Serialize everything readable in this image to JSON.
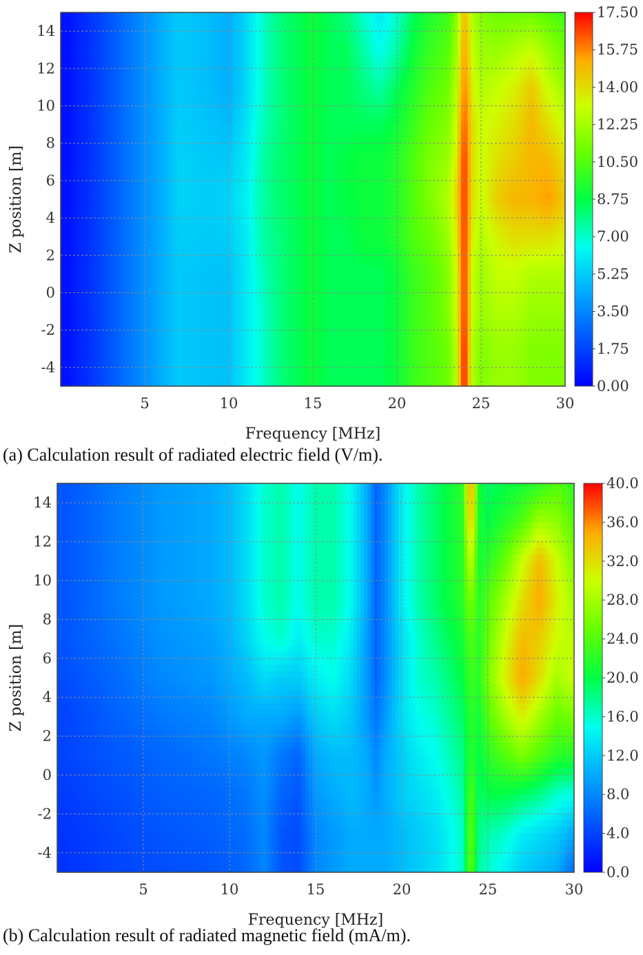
{
  "chart_data": [
    {
      "id": "a",
      "type": "heatmap",
      "caption": "(a) Calculation result of radiated electric field (V/m).",
      "xlabel": "Frequency [MHz]",
      "ylabel": "Z position [m]",
      "xlim": [
        0,
        30
      ],
      "ylim": [
        -5,
        15
      ],
      "xticks": [
        5,
        10,
        15,
        20,
        25,
        30
      ],
      "xtick_labels": [
        "5",
        "10",
        "15",
        "20",
        "25",
        "30"
      ],
      "yticks": [
        14,
        12,
        10,
        8,
        6,
        4,
        2,
        0,
        -2,
        -4
      ],
      "ytick_labels": [
        "14",
        "12",
        "10",
        "8",
        "6",
        "4",
        "2",
        "0",
        "-2",
        "-4"
      ],
      "colorbar_range": [
        0,
        17.5
      ],
      "colorbar_ticks": [
        17.5,
        15.75,
        14.0,
        12.25,
        10.5,
        8.75,
        7.0,
        5.25,
        3.5,
        1.75,
        0.0
      ],
      "colorbar_labels": [
        "17.50",
        "15.75",
        "14.00",
        "12.25",
        "10.50",
        "8.75",
        "7.00",
        "5.25",
        "3.50",
        "1.75",
        "0.00"
      ],
      "grid": true,
      "x": [
        0.5,
        2,
        4,
        6,
        7,
        9,
        10,
        11,
        12,
        13,
        14,
        15,
        16,
        17,
        18,
        19,
        20,
        21,
        22,
        23,
        23.5,
        24,
        24.5,
        25,
        26,
        27,
        28,
        29,
        30
      ],
      "y": [
        15,
        13,
        11,
        9,
        7,
        5,
        3,
        1,
        -1,
        -3,
        -5
      ],
      "z": [
        [
          0.5,
          1.5,
          3,
          4.5,
          5.2,
          4.8,
          4.5,
          5.5,
          7,
          8,
          8.5,
          9,
          8.5,
          8,
          7,
          6,
          7,
          8.5,
          9.5,
          10,
          11.5,
          15,
          12.5,
          11.5,
          11,
          11,
          11,
          10.5,
          10
        ],
        [
          0.5,
          1.5,
          3,
          4.5,
          5.2,
          4.8,
          4.5,
          5.5,
          7,
          8,
          8.5,
          9,
          8.5,
          8.5,
          7.5,
          6.5,
          7.5,
          9,
          10,
          10.5,
          12,
          15.5,
          13,
          12,
          12,
          12.5,
          13,
          12,
          11
        ],
        [
          0.5,
          1.5,
          3,
          4.5,
          5.2,
          4.8,
          4.5,
          5.5,
          7,
          8,
          8.5,
          9,
          8.5,
          8.5,
          8,
          7.5,
          8.5,
          9.5,
          10.5,
          11,
          12.5,
          16,
          13.5,
          12.5,
          13,
          13.5,
          14.5,
          13,
          12
        ],
        [
          0.5,
          1.5,
          3,
          4.5,
          5.3,
          5,
          4.8,
          5.8,
          7.2,
          8,
          8.5,
          9,
          8.5,
          8.5,
          8.5,
          8.5,
          9,
          10,
          11,
          11.5,
          13,
          16.5,
          14,
          13,
          13.5,
          14,
          15,
          14,
          13
        ],
        [
          0.5,
          1.5,
          3,
          4.5,
          5.4,
          5.2,
          5.2,
          6,
          7.5,
          8.2,
          8.5,
          9,
          8.5,
          8.8,
          9,
          9,
          9.5,
          10.5,
          11.5,
          12,
          13.5,
          17,
          14,
          13,
          14,
          14.5,
          15,
          15,
          14
        ],
        [
          0.5,
          1.5,
          3,
          4.5,
          5.4,
          5.3,
          5.5,
          6.2,
          7.5,
          8.2,
          8.5,
          9,
          8.5,
          8.8,
          9,
          9,
          9.5,
          10.5,
          11.5,
          12.5,
          14,
          17,
          14,
          13,
          14.5,
          15,
          15,
          15.5,
          14.5
        ],
        [
          0.5,
          1.5,
          3,
          4.5,
          5.3,
          5.2,
          5.3,
          6,
          7.5,
          8,
          8.5,
          9,
          8.5,
          8.5,
          9,
          9,
          9.5,
          10.5,
          11,
          12,
          13.5,
          17,
          13.5,
          12.5,
          13.5,
          14,
          14,
          14,
          13.5
        ],
        [
          0.5,
          1.5,
          3,
          4.5,
          5.2,
          5,
          5,
          6,
          7.2,
          8,
          8.5,
          9,
          8.5,
          8.5,
          8.5,
          8.5,
          9,
          10,
          10.5,
          11.5,
          13,
          17,
          13,
          12,
          13,
          13,
          12.5,
          12.5,
          12.5
        ],
        [
          0.5,
          1.5,
          3,
          4.5,
          5.2,
          5,
          5,
          6,
          7,
          8,
          8.5,
          9,
          8.5,
          8.5,
          8.5,
          8.5,
          9,
          10,
          10.5,
          11.5,
          13,
          17,
          13,
          12,
          12.5,
          12.5,
          12,
          12,
          12
        ],
        [
          0.5,
          1.5,
          3,
          4.5,
          5.2,
          5,
          5,
          6,
          7,
          8,
          8.5,
          9,
          8.5,
          8.5,
          8.5,
          8.5,
          9,
          10,
          10.5,
          11,
          12.5,
          17.5,
          12.5,
          11.5,
          12,
          12,
          11.5,
          11.5,
          11.5
        ],
        [
          0.5,
          1.5,
          3,
          4.5,
          5.2,
          5,
          5,
          6,
          7,
          8,
          8.5,
          9,
          8.5,
          8.5,
          8.5,
          8.5,
          9,
          10,
          10.5,
          11,
          12.5,
          17.5,
          12.5,
          11.5,
          12,
          12,
          11.5,
          11.5,
          11.5
        ]
      ]
    },
    {
      "id": "b",
      "type": "heatmap",
      "caption": "(b) Calculation result of radiated magnetic field (mA/m).",
      "xlabel": "Frequency [MHz]",
      "ylabel": "Z position [m]",
      "xlim": [
        0,
        30
      ],
      "ylim": [
        -5,
        15
      ],
      "xticks": [
        5,
        10,
        15,
        20,
        25,
        30
      ],
      "xtick_labels": [
        "5",
        "10",
        "15",
        "20",
        "25",
        "30"
      ],
      "yticks": [
        14,
        12,
        10,
        8,
        6,
        4,
        2,
        0,
        -2,
        -4
      ],
      "ytick_labels": [
        "14",
        "12",
        "10",
        "8",
        "6",
        "4",
        "2",
        "0",
        "-2",
        "-4"
      ],
      "colorbar_range": [
        0,
        40
      ],
      "colorbar_ticks": [
        40,
        36,
        32,
        28,
        24,
        20,
        16,
        12,
        8,
        4,
        0
      ],
      "colorbar_labels": [
        "40.0",
        "36.0",
        "32.0",
        "28.0",
        "24.0",
        "20.0",
        "16.0",
        "12.0",
        "8.0",
        "4.0",
        "0.0"
      ],
      "grid": true,
      "x": [
        0.5,
        3,
        6,
        9,
        10,
        11,
        12,
        13,
        14,
        15,
        16,
        17,
        18,
        18.5,
        19,
        20,
        21,
        22,
        23,
        23.5,
        24,
        24.5,
        25,
        26,
        27,
        28,
        29,
        30
      ],
      "y": [
        15,
        13,
        11,
        9,
        7,
        5,
        3,
        1,
        -1,
        -3,
        -5
      ],
      "z": [
        [
          5,
          7,
          9,
          10,
          11,
          13,
          16,
          17,
          15,
          17,
          17,
          15,
          10,
          6,
          8,
          14,
          17,
          19,
          21,
          22,
          36,
          21,
          19,
          20,
          21,
          22,
          24,
          22
        ],
        [
          5,
          7,
          9,
          10,
          11,
          13,
          16,
          17,
          15,
          17,
          17,
          15,
          10,
          6,
          8,
          14,
          17,
          19,
          21,
          22,
          34,
          21,
          20,
          22,
          24,
          28,
          27,
          24
        ],
        [
          5,
          7,
          9,
          10,
          11,
          13,
          16,
          17,
          15,
          17,
          17,
          15,
          10,
          6,
          8,
          14,
          17,
          19,
          21,
          22,
          30,
          21,
          22,
          25,
          30,
          34,
          30,
          26
        ],
        [
          5,
          7,
          9,
          10,
          11,
          13,
          16,
          17,
          15,
          17,
          17,
          15,
          10,
          6,
          8,
          14,
          17,
          19,
          21,
          22,
          26,
          22,
          24,
          28,
          32,
          35,
          31,
          28
        ],
        [
          5,
          6.5,
          8.5,
          9.5,
          10.5,
          12.5,
          15,
          16,
          14,
          16,
          16,
          14,
          9,
          6,
          8,
          13,
          16,
          18,
          20,
          21,
          24,
          22,
          25,
          30,
          34,
          33,
          30,
          29
        ],
        [
          4.5,
          6,
          8,
          9,
          10,
          11,
          13,
          12,
          12,
          14,
          15,
          13,
          9,
          6,
          8,
          13,
          16,
          17,
          19,
          20,
          23,
          22,
          26,
          31,
          35,
          32,
          28,
          30
        ],
        [
          4,
          5.5,
          7,
          8,
          9,
          10,
          10,
          10,
          9,
          12,
          13,
          12,
          9,
          7,
          9,
          13,
          15,
          16,
          18,
          19,
          22,
          21,
          24,
          28,
          31,
          28,
          25,
          26
        ],
        [
          4,
          5,
          6,
          7,
          7.5,
          8,
          9,
          7,
          6,
          10,
          11,
          11,
          10,
          8,
          10,
          12,
          14,
          15,
          17,
          18,
          22,
          20,
          22,
          24,
          26,
          24,
          22,
          22
        ],
        [
          3.5,
          4.5,
          5.5,
          6,
          6.5,
          7,
          8.5,
          6,
          5,
          9,
          10,
          11,
          10,
          9,
          10,
          12,
          13,
          14,
          16,
          17,
          24,
          19,
          20,
          20,
          19,
          18,
          16,
          15
        ],
        [
          3,
          4,
          5,
          5.5,
          6,
          6.5,
          8,
          5,
          4.5,
          8,
          9,
          10,
          10,
          10,
          10,
          11,
          12,
          13,
          15,
          16,
          25,
          18,
          17,
          16,
          14,
          13,
          12,
          10
        ],
        [
          3,
          4,
          4.5,
          5,
          5.5,
          6,
          8,
          5,
          4.5,
          8,
          9,
          10,
          10,
          10,
          10,
          11,
          12,
          13,
          15,
          16,
          25,
          17,
          16,
          14,
          12,
          11,
          10,
          6
        ]
      ]
    }
  ]
}
